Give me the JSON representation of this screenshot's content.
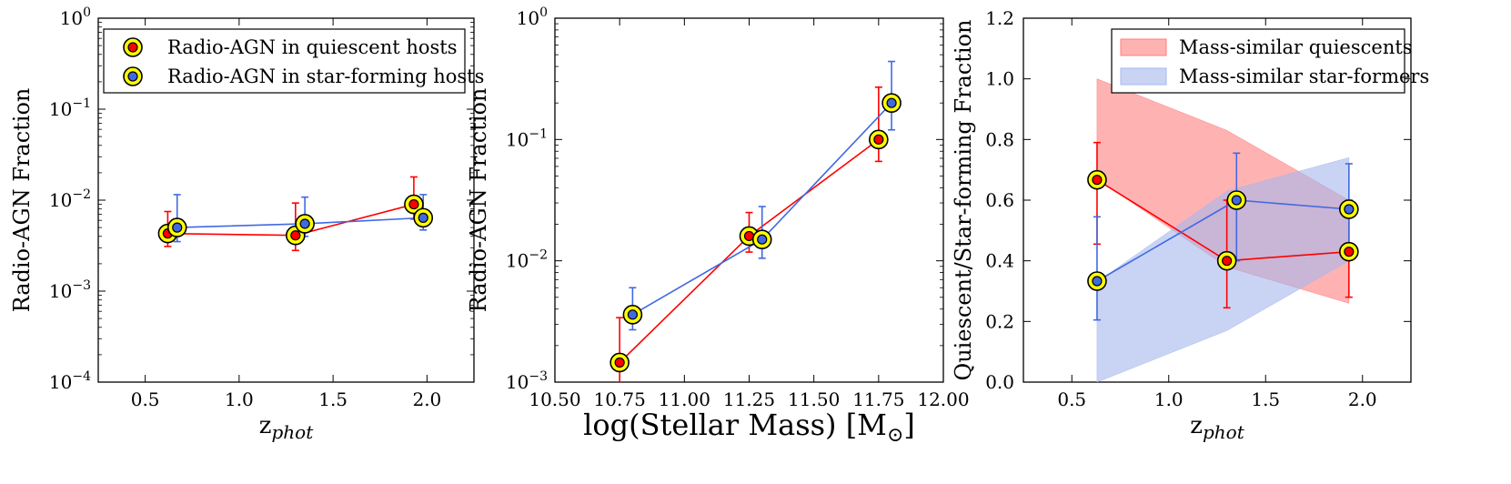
{
  "colors": {
    "quiescent": "#ff0000",
    "starforming": "#4169e1",
    "marker_ring": "#ffff00",
    "quiescent_band": "#ff7f7f",
    "starforming_band": "#a5b8ef"
  },
  "chart_data": [
    {
      "type": "scatter",
      "id": "panel1",
      "xlabel_main": "z",
      "xlabel_sub": "phot",
      "ylabel": "Radio-AGN Fraction",
      "xlim": [
        0.25,
        2.25
      ],
      "ylim": [
        0.0001,
        1
      ],
      "yscale": "log",
      "xticks": [
        "0.5",
        "1.0",
        "1.5",
        "2.0"
      ],
      "xtick_values": [
        0.5,
        1.0,
        1.5,
        2.0
      ],
      "yticks": [
        {
          "base": "10",
          "exp": "−4",
          "value": 0.0001
        },
        {
          "base": "10",
          "exp": "−3",
          "value": 0.001
        },
        {
          "base": "10",
          "exp": "−2",
          "value": 0.01
        },
        {
          "base": "10",
          "exp": "−1",
          "value": 0.1
        },
        {
          "base": "10",
          "exp": "0",
          "value": 1
        }
      ],
      "legend": {
        "placement": "top-left",
        "entries": [
          "Radio-AGN in quiescent hosts",
          "Radio-AGN in star-forming hosts"
        ]
      },
      "series": [
        {
          "key": "quiescent",
          "x": [
            0.62,
            1.3,
            1.93
          ],
          "y": [
            0.0043,
            0.0041,
            0.009
          ],
          "yerr_low": [
            0.0031,
            0.0028,
            0.0062
          ],
          "yerr_high": [
            0.0075,
            0.0093,
            0.018
          ]
        },
        {
          "key": "starforming",
          "x": [
            0.67,
            1.35,
            1.98
          ],
          "y": [
            0.005,
            0.0055,
            0.0064
          ],
          "yerr_low": [
            0.0035,
            0.004,
            0.0047
          ],
          "yerr_high": [
            0.0115,
            0.0108,
            0.0115
          ]
        }
      ]
    },
    {
      "type": "scatter",
      "id": "panel2",
      "xlabel": "log(Stellar Mass) [M",
      "xlabel_sub": "⊙",
      "xlabel_end": "]",
      "ylabel": "Radio-AGN Fraction",
      "xlim": [
        10.5,
        12.0
      ],
      "ylim": [
        0.001,
        1
      ],
      "yscale": "log",
      "xticks": [
        "10.50",
        "10.75",
        "11.00",
        "11.25",
        "11.50",
        "11.75",
        "12.00"
      ],
      "xtick_values": [
        10.5,
        10.75,
        11.0,
        11.25,
        11.5,
        11.75,
        12.0
      ],
      "yticks": [
        {
          "base": "10",
          "exp": "−3",
          "value": 0.001
        },
        {
          "base": "10",
          "exp": "−2",
          "value": 0.01
        },
        {
          "base": "10",
          "exp": "−1",
          "value": 0.1
        },
        {
          "base": "10",
          "exp": "0",
          "value": 1
        }
      ],
      "series": [
        {
          "key": "quiescent",
          "x": [
            10.75,
            11.25,
            11.75
          ],
          "y": [
            0.00145,
            0.016,
            0.1
          ],
          "yerr_low": [
            0.001,
            0.0118,
            0.066
          ],
          "yerr_high": [
            0.0034,
            0.025,
            0.27
          ]
        },
        {
          "key": "starforming",
          "x": [
            10.8,
            11.3,
            11.8
          ],
          "y": [
            0.0036,
            0.015,
            0.2
          ],
          "yerr_low": [
            0.0027,
            0.0105,
            0.12
          ],
          "yerr_high": [
            0.006,
            0.028,
            0.44
          ]
        }
      ]
    },
    {
      "type": "scatter",
      "id": "panel3",
      "xlabel_main": "z",
      "xlabel_sub": "phot",
      "ylabel": "Quiescent/Star-forming Fraction",
      "xlim": [
        0.25,
        2.25
      ],
      "ylim": [
        0.0,
        1.2
      ],
      "yscale": "linear",
      "xticks": [
        "0.5",
        "1.0",
        "1.5",
        "2.0"
      ],
      "xtick_values": [
        0.5,
        1.0,
        1.5,
        2.0
      ],
      "yticks": [
        "0.0",
        "0.2",
        "0.4",
        "0.6",
        "0.8",
        "1.0",
        "1.2"
      ],
      "ytick_values": [
        0.0,
        0.2,
        0.4,
        0.6,
        0.8,
        1.0,
        1.2
      ],
      "legend": {
        "placement": "top-right",
        "entries": [
          "Mass-similar quiescents",
          "Mass-similar star-formers"
        ]
      },
      "bands": [
        {
          "key": "quiescent_band",
          "x": [
            0.63,
            1.3,
            1.93
          ],
          "upper": [
            1.0,
            0.83,
            0.6
          ],
          "lower": [
            0.67,
            0.38,
            0.26
          ]
        },
        {
          "key": "starforming_band",
          "x": [
            0.63,
            1.3,
            1.93
          ],
          "upper": [
            0.33,
            0.63,
            0.74
          ],
          "lower": [
            0.0,
            0.17,
            0.4
          ]
        }
      ],
      "series": [
        {
          "key": "quiescent",
          "x": [
            0.63,
            1.3,
            1.93
          ],
          "y": [
            0.667,
            0.4,
            0.43
          ],
          "yerr_low": [
            0.455,
            0.245,
            0.28
          ],
          "yerr_high": [
            0.79,
            0.6,
            0.6
          ]
        },
        {
          "key": "starforming",
          "x": [
            0.63,
            1.35,
            1.93
          ],
          "y": [
            0.333,
            0.6,
            0.57
          ],
          "yerr_low": [
            0.205,
            0.4,
            0.41
          ],
          "yerr_high": [
            0.545,
            0.755,
            0.72
          ]
        }
      ]
    }
  ]
}
